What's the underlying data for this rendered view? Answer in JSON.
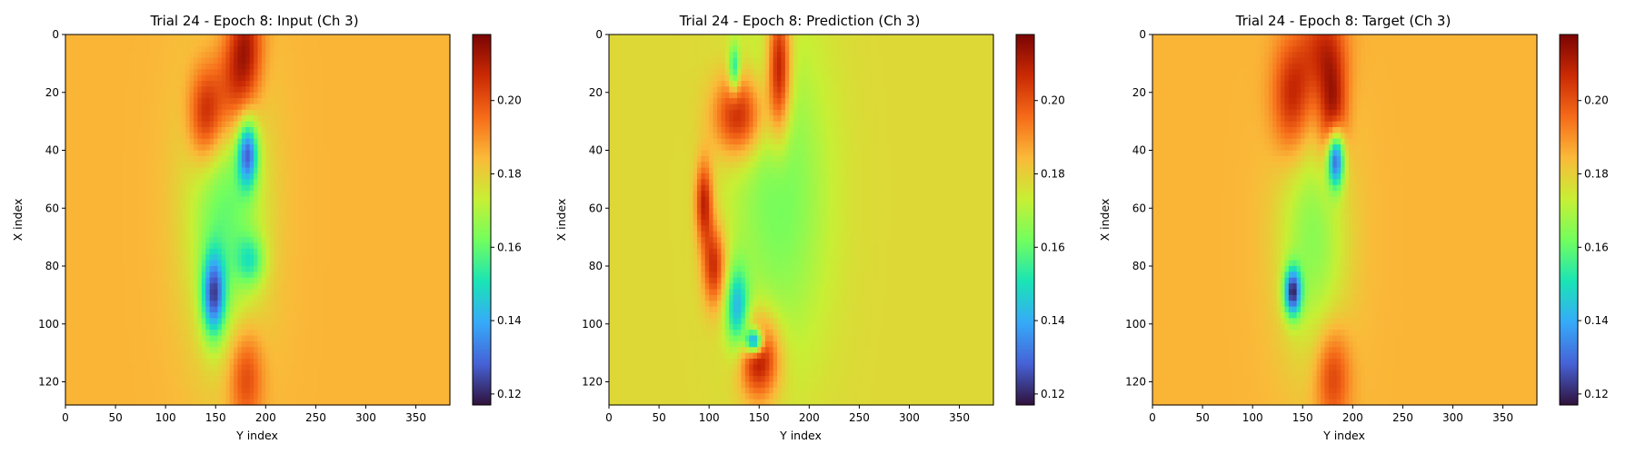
{
  "figure": {
    "colormap": [
      "#30123b",
      "#4662d7",
      "#36aaf9",
      "#1ae4b6",
      "#72fe5e",
      "#c8ef34",
      "#faba39",
      "#f66b19",
      "#ca2a04",
      "#7a0403"
    ]
  },
  "chart_data": [
    {
      "type": "heatmap",
      "title": "Trial 24 - Epoch 8: Input (Ch 3)",
      "xlabel": "Y index",
      "ylabel": "X index",
      "xlim": [
        0,
        384
      ],
      "ylim": [
        128,
        0
      ],
      "xticks": [
        0,
        50,
        100,
        150,
        200,
        250,
        300,
        350
      ],
      "yticks": [
        0,
        20,
        40,
        60,
        80,
        100,
        120
      ],
      "colorbar": {
        "range": [
          0.117,
          0.218
        ],
        "ticks": [
          0.12,
          0.14,
          0.16,
          0.18,
          0.2
        ],
        "tick_labels": [
          "0.12",
          "0.14",
          "0.16",
          "0.18",
          "0.20"
        ]
      },
      "background_value": 0.185,
      "features": [
        {
          "label": "high band",
          "value": 0.212,
          "y_index": 180,
          "x_index": 5,
          "y_spread": 12,
          "x_spread": 14
        },
        {
          "label": "high band",
          "value": 0.214,
          "y_index": 140,
          "x_index": 28,
          "y_spread": 12,
          "x_spread": 12
        },
        {
          "label": "high band",
          "value": 0.205,
          "y_index": 165,
          "x_index": 20,
          "y_spread": 14,
          "x_spread": 14
        },
        {
          "label": "high band",
          "value": 0.205,
          "y_index": 180,
          "x_index": 118,
          "y_spread": 12,
          "x_spread": 12
        },
        {
          "label": "low region",
          "value": 0.14,
          "y_index": 182,
          "x_index": 41,
          "y_spread": 7,
          "x_spread": 8
        },
        {
          "label": "low region",
          "value": 0.138,
          "y_index": 148,
          "x_index": 90,
          "y_spread": 8,
          "x_spread": 10
        },
        {
          "label": "mid region",
          "value": 0.16,
          "y_index": 160,
          "x_index": 60,
          "y_spread": 28,
          "x_spread": 35
        },
        {
          "label": "mid region",
          "value": 0.165,
          "y_index": 185,
          "x_index": 78,
          "y_spread": 10,
          "x_spread": 6
        }
      ]
    },
    {
      "type": "heatmap",
      "title": "Trial 24 - Epoch 8: Prediction (Ch 3)",
      "xlabel": "Y index",
      "ylabel": "X index",
      "xlim": [
        0,
        384
      ],
      "ylim": [
        128,
        0
      ],
      "xticks": [
        0,
        50,
        100,
        150,
        200,
        250,
        300,
        350
      ],
      "yticks": [
        0,
        20,
        40,
        60,
        80,
        100,
        120
      ],
      "colorbar": {
        "range": [
          0.117,
          0.218
        ],
        "ticks": [
          0.12,
          0.14,
          0.16,
          0.18,
          0.2
        ],
        "tick_labels": [
          "0.12",
          "0.14",
          "0.16",
          "0.18",
          "0.20"
        ]
      },
      "background_value": 0.178,
      "features": [
        {
          "label": "high band",
          "value": 0.216,
          "y_index": 170,
          "x_index": 12,
          "y_spread": 8,
          "x_spread": 16
        },
        {
          "label": "high band",
          "value": 0.212,
          "y_index": 130,
          "x_index": 28,
          "y_spread": 18,
          "x_spread": 10
        },
        {
          "label": "high band",
          "value": 0.21,
          "y_index": 95,
          "x_index": 58,
          "y_spread": 6,
          "x_spread": 10
        },
        {
          "label": "high band",
          "value": 0.208,
          "y_index": 105,
          "x_index": 80,
          "y_spread": 8,
          "x_spread": 10
        },
        {
          "label": "high band",
          "value": 0.215,
          "y_index": 150,
          "x_index": 112,
          "y_spread": 14,
          "x_spread": 10
        },
        {
          "label": "low region",
          "value": 0.12,
          "y_index": 145,
          "x_index": 106,
          "y_spread": 6,
          "x_spread": 3
        },
        {
          "label": "low region",
          "value": 0.145,
          "y_index": 128,
          "x_index": 95,
          "y_spread": 8,
          "x_spread": 10
        },
        {
          "label": "low region",
          "value": 0.15,
          "y_index": 125,
          "x_index": 12,
          "y_spread": 4,
          "x_spread": 6
        },
        {
          "label": "mid region",
          "value": 0.162,
          "y_index": 170,
          "x_index": 55,
          "y_spread": 35,
          "x_spread": 40
        }
      ]
    },
    {
      "type": "heatmap",
      "title": "Trial 24 - Epoch 8: Target (Ch 3)",
      "xlabel": "Y index",
      "ylabel": "X index",
      "xlim": [
        0,
        384
      ],
      "ylim": [
        128,
        0
      ],
      "xticks": [
        0,
        50,
        100,
        150,
        200,
        250,
        300,
        350
      ],
      "yticks": [
        0,
        20,
        40,
        60,
        80,
        100,
        120
      ],
      "colorbar": {
        "range": [
          0.117,
          0.218
        ],
        "ticks": [
          0.12,
          0.14,
          0.16,
          0.18,
          0.2
        ],
        "tick_labels": [
          "0.12",
          "0.14",
          "0.16",
          "0.18",
          "0.20"
        ]
      },
      "background_value": 0.185,
      "features": [
        {
          "label": "high band",
          "value": 0.214,
          "y_index": 180,
          "x_index": 28,
          "y_spread": 10,
          "x_spread": 14
        },
        {
          "label": "high band",
          "value": 0.21,
          "y_index": 140,
          "x_index": 22,
          "y_spread": 14,
          "x_spread": 14
        },
        {
          "label": "high band",
          "value": 0.205,
          "y_index": 170,
          "x_index": 5,
          "y_spread": 16,
          "x_spread": 12
        },
        {
          "label": "high band",
          "value": 0.205,
          "y_index": 180,
          "x_index": 118,
          "y_spread": 12,
          "x_spread": 12
        },
        {
          "label": "low region",
          "value": 0.125,
          "y_index": 183,
          "x_index": 43,
          "y_spread": 6,
          "x_spread": 7
        },
        {
          "label": "low region",
          "value": 0.13,
          "y_index": 140,
          "x_index": 89,
          "y_spread": 6,
          "x_spread": 6
        },
        {
          "label": "mid region",
          "value": 0.165,
          "y_index": 160,
          "x_index": 70,
          "y_spread": 25,
          "x_spread": 30
        }
      ]
    }
  ]
}
